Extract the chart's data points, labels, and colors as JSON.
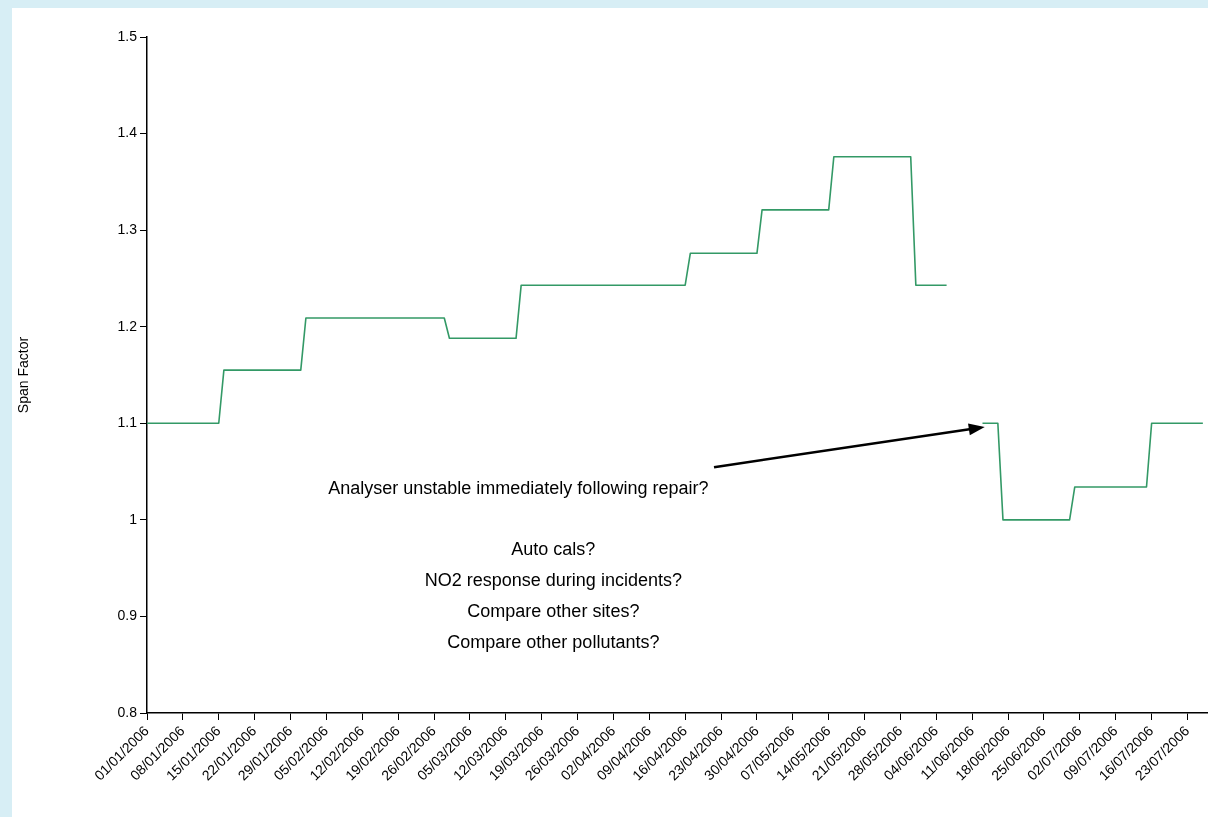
{
  "chart_data": {
    "type": "line",
    "ylabel": "Span Factor",
    "legend": false,
    "grid": false,
    "marker": "none",
    "line_style": "solid",
    "x": [
      "2006-01-01",
      "2006-01-15",
      "2006-01-16",
      "2006-01-31",
      "2006-02-01",
      "2006-02-28",
      "2006-03-01",
      "2006-03-14",
      "2006-03-15",
      "2006-04-16",
      "2006-04-17",
      "2006-04-30",
      "2006-05-01",
      "2006-05-14",
      "2006-05-15",
      "2006-05-30",
      "2006-05-31",
      "2006-06-06",
      "2006-06-09",
      "2006-06-13",
      "2006-06-16",
      "2006-06-17",
      "2006-06-30",
      "2006-07-01",
      "2006-07-15",
      "2006-07-16",
      "2006-07-26"
    ],
    "series": [
      {
        "color": "#339966",
        "values": [
          1.1,
          1.1,
          1.155,
          1.155,
          1.209,
          1.209,
          1.188,
          1.188,
          1.243,
          1.243,
          1.276,
          1.276,
          1.321,
          1.321,
          1.376,
          1.376,
          1.243,
          1.243,
          null,
          1.1,
          1.1,
          1.0,
          1.0,
          1.034,
          1.034,
          1.1,
          1.1
        ]
      }
    ],
    "xlim": [
      "2006-01-01",
      "2006-07-27"
    ],
    "xticks": [
      {
        "value": "2006-01-01",
        "label": "01/01/2006"
      },
      {
        "value": "2006-01-08",
        "label": "08/01/2006"
      },
      {
        "value": "2006-01-15",
        "label": "15/01/2006"
      },
      {
        "value": "2006-01-22",
        "label": "22/01/2006"
      },
      {
        "value": "2006-01-29",
        "label": "29/01/2006"
      },
      {
        "value": "2006-02-05",
        "label": "05/02/2006"
      },
      {
        "value": "2006-02-12",
        "label": "12/02/2006"
      },
      {
        "value": "2006-02-19",
        "label": "19/02/2006"
      },
      {
        "value": "2006-02-26",
        "label": "26/02/2006"
      },
      {
        "value": "2006-03-05",
        "label": "05/03/2006"
      },
      {
        "value": "2006-03-12",
        "label": "12/03/2006"
      },
      {
        "value": "2006-03-19",
        "label": "19/03/2006"
      },
      {
        "value": "2006-03-26",
        "label": "26/03/2006"
      },
      {
        "value": "2006-04-02",
        "label": "02/04/2006"
      },
      {
        "value": "2006-04-09",
        "label": "09/04/2006"
      },
      {
        "value": "2006-04-16",
        "label": "16/04/2006"
      },
      {
        "value": "2006-04-23",
        "label": "23/04/2006"
      },
      {
        "value": "2006-04-30",
        "label": "30/04/2006"
      },
      {
        "value": "2006-05-07",
        "label": "07/05/2006"
      },
      {
        "value": "2006-05-14",
        "label": "14/05/2006"
      },
      {
        "value": "2006-05-21",
        "label": "21/05/2006"
      },
      {
        "value": "2006-05-28",
        "label": "28/05/2006"
      },
      {
        "value": "2006-06-04",
        "label": "04/06/2006"
      },
      {
        "value": "2006-06-11",
        "label": "11/06/2006"
      },
      {
        "value": "2006-06-18",
        "label": "18/06/2006"
      },
      {
        "value": "2006-06-25",
        "label": "25/06/2006"
      },
      {
        "value": "2006-07-02",
        "label": "02/07/2006"
      },
      {
        "value": "2006-07-09",
        "label": "09/07/2006"
      },
      {
        "value": "2006-07-16",
        "label": "16/07/2006"
      },
      {
        "value": "2006-07-23",
        "label": "23/07/2006"
      }
    ],
    "ylim": [
      0.8,
      1.5
    ],
    "yticks": [
      0.8,
      0.9,
      1,
      1.1,
      1.2,
      1.3,
      1.4,
      1.5
    ],
    "annotations": [
      "Analyser unstable immediately following repair?",
      "Auto cals?",
      "NO2 response during incidents?",
      "Compare other sites?",
      "Compare other pollutants?"
    ]
  }
}
